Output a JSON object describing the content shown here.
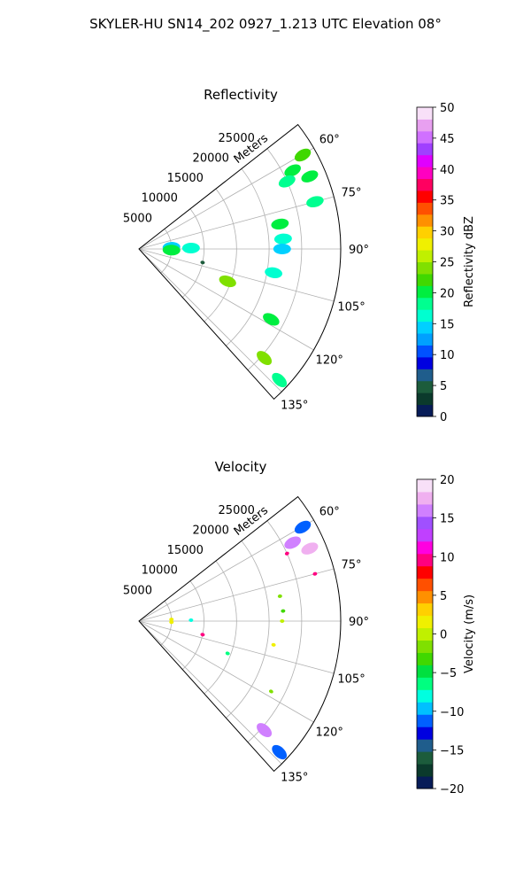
{
  "figure": {
    "suptitle": "SKYLER-HU  SN14_202  0927_1.213 UTC Elevation 08°"
  },
  "chart_data": [
    {
      "type": "heatmap",
      "projection": "polar-sector",
      "title": "Reflectivity",
      "radial_label": "Meters",
      "r_ticks": [
        5000,
        10000,
        15000,
        20000,
        25000
      ],
      "r_tick_labels": [
        "5000",
        "10000",
        "15000",
        "20000",
        "25000"
      ],
      "rlim": [
        0,
        31000
      ],
      "azimuth_range_deg": [
        52,
        138
      ],
      "theta_ticks": [
        60,
        75,
        90,
        105,
        120,
        135
      ],
      "theta_tick_labels": [
        "60°",
        "75°",
        "90°",
        "105°",
        "120°",
        "135°"
      ],
      "grid": true,
      "echoes": [
        {
          "az": 60.2,
          "r": 29000,
          "value": 22
        },
        {
          "az": 63.0,
          "r": 26500,
          "value": 20
        },
        {
          "az": 67.0,
          "r": 28500,
          "value": 21
        },
        {
          "az": 65.5,
          "r": 25000,
          "value": 19
        },
        {
          "az": 75.0,
          "r": 28000,
          "value": 18
        },
        {
          "az": 80.0,
          "r": 22000,
          "value": 20
        },
        {
          "az": 86.0,
          "r": 22200,
          "value": 16
        },
        {
          "az": 90.0,
          "r": 22000,
          "value": 14
        },
        {
          "az": 100.0,
          "r": 21000,
          "value": 17
        },
        {
          "az": 87.0,
          "r": 5000,
          "value": 15
        },
        {
          "az": 89.0,
          "r": 8000,
          "value": 17
        },
        {
          "az": 92.0,
          "r": 5000,
          "value": 20
        },
        {
          "az": 102.0,
          "r": 10000,
          "value": 4
        },
        {
          "az": 110.0,
          "r": 14500,
          "value": 24
        },
        {
          "az": 118.0,
          "r": 23000,
          "value": 20
        },
        {
          "az": 131.0,
          "r": 25500,
          "value": 24
        },
        {
          "az": 133.0,
          "r": 29500,
          "value": 19
        }
      ],
      "colorbar": {
        "label": "Reflectivity dBZ",
        "range": [
          0,
          50
        ],
        "ticks": [
          0,
          5,
          10,
          15,
          20,
          25,
          30,
          35,
          40,
          45,
          50
        ],
        "tick_labels": [
          "0",
          "5",
          "10",
          "15",
          "20",
          "25",
          "30",
          "35",
          "40",
          "45",
          "50"
        ]
      }
    },
    {
      "type": "heatmap",
      "projection": "polar-sector",
      "title": "Velocity",
      "radial_label": "Meters",
      "r_ticks": [
        5000,
        10000,
        15000,
        20000,
        25000
      ],
      "r_tick_labels": [
        "5000",
        "10000",
        "15000",
        "20000",
        "25000"
      ],
      "rlim": [
        0,
        31000
      ],
      "azimuth_range_deg": [
        52,
        138
      ],
      "theta_ticks": [
        60,
        75,
        90,
        105,
        120,
        135
      ],
      "theta_tick_labels": [
        "60°",
        "75°",
        "90°",
        "105°",
        "120°",
        "135°"
      ],
      "grid": true,
      "echoes": [
        {
          "az": 60.2,
          "r": 29000,
          "value": -12
        },
        {
          "az": 63.0,
          "r": 26500,
          "value": 16
        },
        {
          "az": 67.0,
          "r": 28500,
          "value": 17
        },
        {
          "az": 65.5,
          "r": 25000,
          "value": 10
        },
        {
          "az": 75.0,
          "r": 28000,
          "value": 10
        },
        {
          "az": 80.0,
          "r": 22000,
          "value": -2
        },
        {
          "az": 86.0,
          "r": 22200,
          "value": -3
        },
        {
          "az": 90.0,
          "r": 22000,
          "value": 0
        },
        {
          "az": 100.0,
          "r": 21000,
          "value": 1
        },
        {
          "az": 87.0,
          "r": 5000,
          "value": 1
        },
        {
          "az": 89.0,
          "r": 8000,
          "value": -8
        },
        {
          "az": 92.0,
          "r": 5000,
          "value": 2
        },
        {
          "az": 102.0,
          "r": 10000,
          "value": 10
        },
        {
          "az": 110.0,
          "r": 14500,
          "value": -6
        },
        {
          "az": 118.0,
          "r": 23000,
          "value": -2
        },
        {
          "az": 131.0,
          "r": 25500,
          "value": 16
        },
        {
          "az": 133.0,
          "r": 29500,
          "value": -12
        }
      ],
      "colorbar": {
        "label": "Velocity (m/s)",
        "range": [
          -20,
          20
        ],
        "ticks": [
          -20,
          -15,
          -10,
          -5,
          0,
          5,
          10,
          15,
          20
        ],
        "tick_labels": [
          "−20",
          "−15",
          "−10",
          "−5",
          "0",
          "5",
          "10",
          "15",
          "20"
        ]
      }
    }
  ],
  "colormaps": {
    "reflectivity": [
      "#071c58",
      "#0b3a2c",
      "#1c5c3c",
      "#1f5d8c",
      "#0000e0",
      "#0050ff",
      "#00a0ff",
      "#00d0ff",
      "#00ffd0",
      "#00ff90",
      "#00ee40",
      "#40d800",
      "#80e000",
      "#c0f000",
      "#f0f000",
      "#ffd000",
      "#ff9000",
      "#ff5000",
      "#ff0000",
      "#ff0060",
      "#ff00c0",
      "#e000ff",
      "#a040ff",
      "#d070ff",
      "#e8a0f0",
      "#f8e0f8"
    ],
    "velocity": [
      "#071c58",
      "#0b3a2c",
      "#1c5c3c",
      "#1f5d8c",
      "#0000e0",
      "#0060ff",
      "#00c0ff",
      "#00ffe0",
      "#00ff80",
      "#00e040",
      "#40d800",
      "#80e000",
      "#c0f000",
      "#f0f000",
      "#ffd000",
      "#ff9000",
      "#ff5000",
      "#ff0000",
      "#ff0080",
      "#ff00e0",
      "#c040ff",
      "#a050ff",
      "#d080ff",
      "#f0b0f0",
      "#f8e0f8"
    ]
  }
}
